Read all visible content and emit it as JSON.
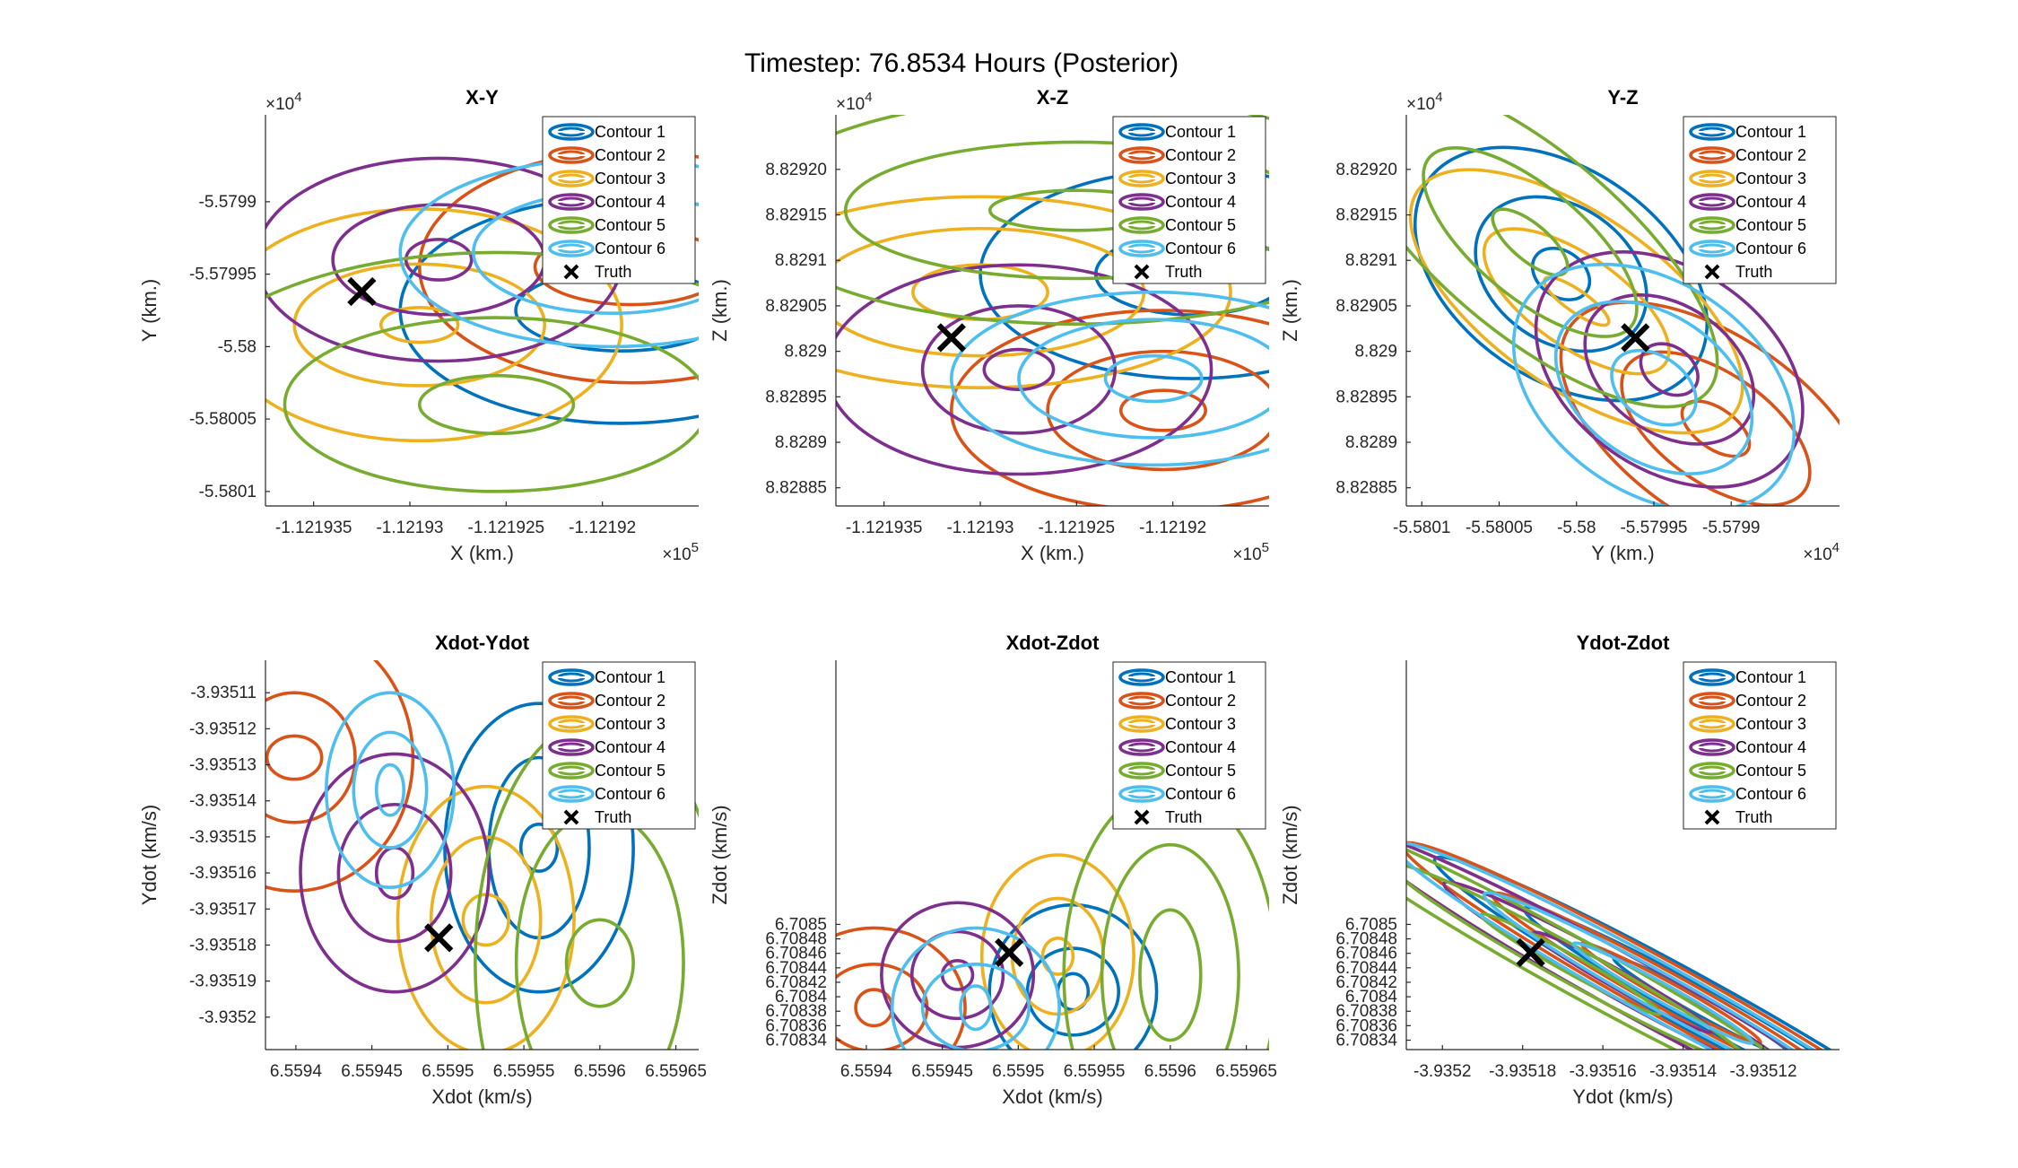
{
  "figure": {
    "title": "Timestep: 76.8534 Hours (Posterior)"
  },
  "colors": [
    "#0072BD",
    "#D95319",
    "#EDB120",
    "#7E2F8E",
    "#77AC30",
    "#4DBEEE"
  ],
  "legend": {
    "entries": [
      "Contour 1",
      "Contour 2",
      "Contour 3",
      "Contour 4",
      "Contour 5",
      "Contour 6",
      "Truth"
    ],
    "placement": "top-right"
  },
  "chart_data": [
    {
      "type": "scatter",
      "title": "X-Y",
      "xlabel": "X (km.)",
      "ylabel": "Y (km.)",
      "x_exponent": "×10^5",
      "y_exponent": "×10^4",
      "xlim": [
        -112193.75,
        -112191.5
      ],
      "ylim": [
        -55801.1,
        -55798.4
      ],
      "xticks": [
        -112193.5,
        -112193.0,
        -112192.5,
        -112192.0
      ],
      "xticklabels": [
        "-1.121935",
        "-1.12193",
        "-1.121925",
        "-1.12192"
      ],
      "yticks": [
        -55801.0,
        -55800.5,
        -55800.0,
        -55799.5,
        -55799.0
      ],
      "yticklabels": [
        "-5.5801",
        "-5.58005",
        "-5.58",
        "-5.57995",
        "-5.5799"
      ],
      "truth": [
        -112193.25,
        -55799.62
      ],
      "contours": [
        {
          "center": [
            -112191.9,
            -55799.75
          ],
          "rx": [
            0.55,
            1.15
          ],
          "ry": [
            0.28,
            0.78
          ]
        },
        {
          "center": [
            -112191.85,
            -55799.45
          ],
          "rx": [
            0.5,
            1.1
          ],
          "ry": [
            0.26,
            0.8
          ]
        },
        {
          "center": [
            -112192.95,
            -55799.85
          ],
          "rx": [
            0.2,
            0.65,
            1.05
          ],
          "ry": [
            0.12,
            0.42,
            0.8
          ]
        },
        {
          "center": [
            -112192.85,
            -55799.4
          ],
          "rx": [
            0.17,
            0.55,
            0.95
          ],
          "ry": [
            0.14,
            0.38,
            0.7
          ]
        },
        {
          "center": [
            -112192.55,
            -55800.4
          ],
          "rx": [
            0.4,
            1.1,
            1.7
          ],
          "ry": [
            0.2,
            0.6,
            1.05
          ]
        },
        {
          "center": [
            -112191.95,
            -55799.35
          ],
          "rx": [
            0.3,
            0.72,
            1.1
          ],
          "ry": [
            0.18,
            0.42,
            0.65
          ]
        }
      ]
    },
    {
      "type": "scatter",
      "title": "X-Z",
      "xlabel": "X (km.)",
      "ylabel": "Z (km.)",
      "x_exponent": "×10^5",
      "y_exponent": "×10^4",
      "xlim": [
        -112193.75,
        -112191.5
      ],
      "ylim": [
        88288.3,
        88292.6
      ],
      "xticks": [
        -112193.5,
        -112193.0,
        -112192.5,
        -112192.0
      ],
      "xticklabels": [
        "-1.121935",
        "-1.12193",
        "-1.121925",
        "-1.12192"
      ],
      "yticks": [
        88288.5,
        88289.0,
        88289.5,
        88290.0,
        88290.5,
        88291.0,
        88291.5,
        88292.0
      ],
      "yticklabels": [
        "8.82885",
        "8.8289",
        "8.82895",
        "8.829",
        "8.82905",
        "8.8291",
        "8.82915",
        "8.82920"
      ],
      "truth": [
        -112193.15,
        88290.15
      ],
      "contours": [
        {
          "center": [
            -112191.9,
            88290.85
          ],
          "rx": [
            0.5,
            1.1
          ],
          "ry": [
            0.45,
            1.15
          ]
        },
        {
          "center": [
            -112192.05,
            88289.35
          ],
          "rx": [
            0.22,
            0.6,
            1.1
          ],
          "ry": [
            0.22,
            0.65,
            1.1
          ]
        },
        {
          "center": [
            -112193.0,
            88290.65
          ],
          "rx": [
            0.35,
            0.85,
            1.3
          ],
          "ry": [
            0.3,
            0.7,
            1.05
          ]
        },
        {
          "center": [
            -112192.8,
            88289.8
          ],
          "rx": [
            0.18,
            0.5,
            1.0
          ],
          "ry": [
            0.22,
            0.7,
            1.15
          ]
        },
        {
          "center": [
            -112192.5,
            88291.55
          ],
          "rx": [
            0.45,
            1.2,
            1.7
          ],
          "ry": [
            0.22,
            0.75,
            1.25
          ]
        },
        {
          "center": [
            -112192.1,
            88289.7
          ],
          "rx": [
            0.25,
            0.7,
            1.05
          ],
          "ry": [
            0.25,
            0.65,
            0.95
          ]
        }
      ]
    },
    {
      "type": "scatter",
      "title": "Y-Z",
      "xlabel": "Y (km.)",
      "ylabel": "Z (km.)",
      "x_exponent": "×10^4",
      "y_exponent": "×10^4",
      "xlim": [
        -55801.1,
        -55798.3
      ],
      "ylim": [
        88288.3,
        88292.6
      ],
      "xticks": [
        -55801.0,
        -55800.5,
        -55800.0,
        -55799.5,
        -55799.0
      ],
      "xticklabels": [
        "-5.5801",
        "-5.58005",
        "-5.58",
        "-5.57995",
        "-5.5799"
      ],
      "yticks": [
        88288.5,
        88289.0,
        88289.5,
        88290.0,
        88290.5,
        88291.0,
        88291.5,
        88292.0
      ],
      "yticklabels": [
        "8.82885",
        "8.8289",
        "8.82895",
        "8.829",
        "8.82905",
        "8.8291",
        "8.82915",
        "8.82920"
      ],
      "truth": [
        -55799.62,
        88290.15
      ],
      "contours": [
        {
          "center": [
            -55800.1,
            88290.85
          ],
          "rx": [
            0.2,
            0.6,
            1.05
          ],
          "ry": [
            0.25,
            0.75,
            1.15
          ],
          "rot": 35
        },
        {
          "center": [
            -55799.1,
            88289.15
          ],
          "rx": [
            0.25,
            0.7,
            1.15
          ],
          "ry": [
            0.22,
            0.6,
            1.0
          ],
          "rot": 35
        },
        {
          "center": [
            -55800.0,
            88290.55
          ],
          "rx": [
            0.25,
            0.7,
            1.25
          ],
          "ry": [
            0.12,
            0.5,
            0.95
          ],
          "rot": 35
        },
        {
          "center": [
            -55799.4,
            88289.8
          ],
          "rx": [
            0.2,
            0.6,
            0.95
          ],
          "ry": [
            0.25,
            0.7,
            1.1
          ],
          "rot": 35
        },
        {
          "center": [
            -55800.3,
            88291.2
          ],
          "rx": [
            0.3,
            0.85,
            1.5
          ],
          "ry": [
            0.2,
            0.6,
            1.0
          ],
          "rot": 40
        },
        {
          "center": [
            -55799.5,
            88289.6
          ],
          "rx": [
            0.3,
            0.7,
            1.0
          ],
          "ry": [
            0.35,
            0.8,
            1.15
          ],
          "rot": 35
        }
      ]
    },
    {
      "type": "scatter",
      "title": "Xdot-Ydot",
      "xlabel": "Xdot (km/s)",
      "ylabel": "Ydot (km/s)",
      "x_exponent": "",
      "y_exponent": "",
      "xlim": [
        6.55938,
        6.559665
      ],
      "ylim": [
        -3.935209,
        -3.935101
      ],
      "xticks": [
        6.5594,
        6.55945,
        6.5595,
        6.55955,
        6.5596,
        6.55965
      ],
      "xticklabels": [
        "6.5594",
        "6.55945",
        "6.5595",
        "6.55955",
        "6.5596",
        "6.55965"
      ],
      "yticks": [
        -3.93511,
        -3.93512,
        -3.93513,
        -3.93514,
        -3.93515,
        -3.93516,
        -3.93517,
        -3.93518,
        -3.93519,
        -3.9352
      ],
      "yticklabels": [
        "-3.93511",
        "-3.93512",
        "-3.93513",
        "-3.93514",
        "-3.93515",
        "-3.93516",
        "-3.93517",
        "-3.93518",
        "-3.93519",
        "-3.9352"
      ],
      "truth": [
        6.559494,
        -3.935178
      ],
      "contours": [
        {
          "center": [
            6.55956,
            -3.935153
          ],
          "rx": [
            1.2e-05,
            3.3e-05,
            6.2e-05
          ],
          "ry": [
            6.5e-06,
            2.5e-05,
            4e-05
          ]
        },
        {
          "center": [
            6.559399,
            -3.935128
          ],
          "rx": [
            1.8e-05,
            4e-05,
            7.8e-05
          ],
          "ry": [
            6e-06,
            1.8e-05,
            3.7e-05
          ]
        },
        {
          "center": [
            6.559525,
            -3.935173
          ],
          "rx": [
            1.5e-05,
            3.6e-05,
            5.8e-05
          ],
          "ry": [
            7e-06,
            2.3e-05,
            3.7e-05
          ]
        },
        {
          "center": [
            6.559465,
            -3.93516
          ],
          "rx": [
            1.2e-05,
            3.7e-05,
            6.2e-05
          ],
          "ry": [
            7e-06,
            1.9e-05,
            3.3e-05
          ]
        },
        {
          "center": [
            6.5596,
            -3.935185
          ],
          "rx": [
            2.2e-05,
            5.5e-05,
            8.2e-05
          ],
          "ry": [
            1.2e-05,
            4.2e-05,
            6.8e-05
          ]
        },
        {
          "center": [
            6.559462,
            -3.935137
          ],
          "rx": [
            9e-06,
            2.4e-05,
            4.2e-05
          ],
          "ry": [
            7e-06,
            1.6e-05,
            2.7e-05
          ]
        }
      ]
    },
    {
      "type": "scatter",
      "title": "Xdot-Zdot",
      "xlabel": "Xdot (km/s)",
      "ylabel": "Zdot (km/s)",
      "x_exponent": "",
      "y_exponent": "",
      "xlim": [
        6.55938,
        6.559665
      ],
      "ylim": [
        6.708327,
        6.708865
      ],
      "xticks": [
        6.5594,
        6.55945,
        6.5595,
        6.55955,
        6.5596,
        6.55965
      ],
      "xticklabels": [
        "6.5594",
        "6.55945",
        "6.5595",
        "6.55955",
        "6.5596",
        "6.55965"
      ],
      "yticks": [
        6.70834,
        6.70836,
        6.70838,
        6.7084,
        6.70842,
        6.70844,
        6.70846,
        6.70848,
        6.7085
      ],
      "yticklabels": [
        "6.70834",
        "6.70836",
        "6.70838",
        "6.7084",
        "6.70842",
        "6.70844",
        "6.70846",
        "6.70848",
        "6.7085"
      ],
      "truth": [
        6.559494,
        6.708461
      ],
      "contours": [
        {
          "center": [
            6.559536,
            6.708407
          ],
          "rx": [
            1e-05,
            3e-05,
            5.5e-05
          ],
          "ry": [
            2.5e-05,
            6e-05,
            0.00012
          ]
        },
        {
          "center": [
            6.559405,
            6.708385
          ],
          "rx": [
            1.2e-05,
            3.5e-05,
            6e-05
          ],
          "ry": [
            2.5e-05,
            6e-05,
            0.00011
          ]
        },
        {
          "center": [
            6.559526,
            6.708456
          ],
          "rx": [
            1e-05,
            3e-05,
            5e-05
          ],
          "ry": [
            2.5e-05,
            8e-05,
            0.00014
          ]
        },
        {
          "center": [
            6.55946,
            6.70843
          ],
          "rx": [
            1e-05,
            3e-05,
            5e-05
          ],
          "ry": [
            2e-05,
            6e-05,
            0.0001
          ]
        },
        {
          "center": [
            6.5596,
            6.70843
          ],
          "rx": [
            2e-05,
            4.5e-05,
            7e-05
          ],
          "ry": [
            9e-05,
            0.00018,
            0.00026
          ]
        },
        {
          "center": [
            6.559472,
            6.708385
          ],
          "rx": [
            1e-05,
            3.5e-05,
            5.5e-05
          ],
          "ry": [
            3e-05,
            6e-05,
            0.00011
          ]
        }
      ]
    },
    {
      "type": "scatter",
      "title": "Ydot-Zdot",
      "xlabel": "Ydot (km/s)",
      "ylabel": "Zdot (km/s)",
      "x_exponent": "",
      "y_exponent": "",
      "xlim": [
        -3.935209,
        -3.935101
      ],
      "ylim": [
        6.708327,
        6.708865
      ],
      "xticks": [
        -3.9352,
        -3.93518,
        -3.93516,
        -3.93514,
        -3.93512
      ],
      "xticklabels": [
        "-3.9352",
        "-3.93518",
        "-3.93516",
        "-3.93514",
        "-3.93512"
      ],
      "yticks": [
        6.70834,
        6.70836,
        6.70838,
        6.7084,
        6.70842,
        6.70844,
        6.70846,
        6.70848,
        6.7085
      ],
      "yticklabels": [
        "6.70834",
        "6.70836",
        "6.70838",
        "6.7084",
        "6.70842",
        "6.70844",
        "6.70846",
        "6.70848",
        "6.7085"
      ],
      "truth": [
        -3.935178,
        6.708461
      ],
      "contours": [
        {
          "center": [
            -3.935135,
            6.708385
          ],
          "rx": [
            3e-05,
            6e-05,
            9e-05
          ],
          "ry": [
            0.004,
            0.008,
            0.012
          ],
          "rot": -29
        },
        {
          "center": [
            -3.935143,
            6.708405
          ],
          "rx": [
            5e-05,
            9e-05,
            0.00013
          ],
          "ry": [
            0.004,
            0.008,
            0.012
          ],
          "rot": -29
        },
        {
          "center": [
            -3.935155,
            6.70842
          ],
          "rx": [
            3e-05,
            6e-05,
            9e-05
          ],
          "ry": [
            0.004,
            0.008,
            0.012
          ],
          "rot": -29
        },
        {
          "center": [
            -3.935155,
            6.70842
          ],
          "rx": [
            2e-05,
            5e-05,
            8e-05
          ],
          "ry": [
            0.004,
            0.008,
            0.012
          ],
          "rot": -29
        },
        {
          "center": [
            -3.935168,
            6.708445
          ],
          "rx": [
            5e-05,
            9e-05,
            0.00012
          ],
          "ry": [
            0.004,
            0.008,
            0.012
          ],
          "rot": -29
        },
        {
          "center": [
            -3.935145,
            6.708405
          ],
          "rx": [
            3e-05,
            6e-05,
            0.0001
          ],
          "ry": [
            0.004,
            0.008,
            0.012
          ],
          "rot": -29
        }
      ]
    }
  ]
}
